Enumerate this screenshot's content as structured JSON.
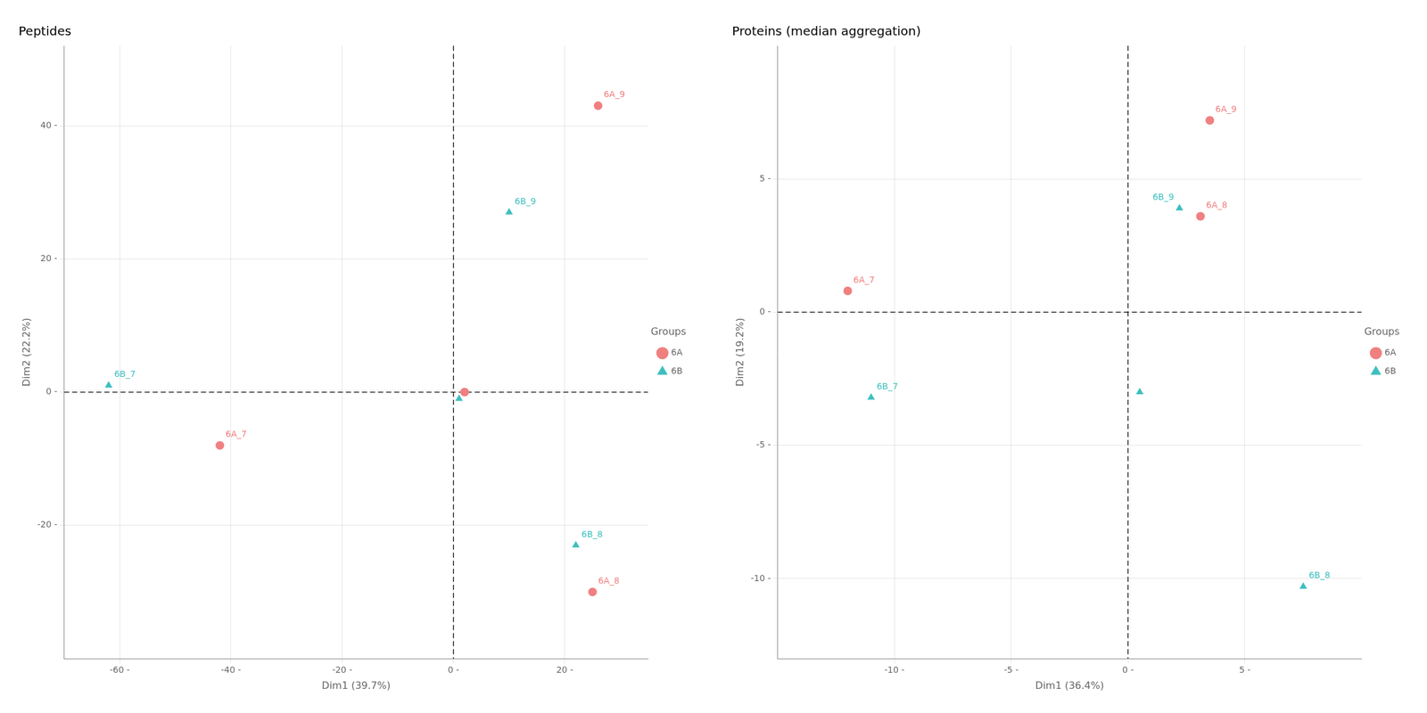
{
  "chart_data": [
    {
      "type": "scatter",
      "title": "Peptides",
      "xlabel": "Dim1 (39.7%)",
      "ylabel": "Dim2 (22.2%)",
      "xlim": [
        -70,
        35
      ],
      "ylim": [
        -40,
        52
      ],
      "xticks": [
        {
          "value": -60,
          "label": "-60 -"
        },
        {
          "value": -40,
          "label": "-40 -"
        },
        {
          "value": -20,
          "label": "-20 -"
        },
        {
          "value": 0,
          "label": "0 -"
        },
        {
          "value": 20,
          "label": "20 -"
        }
      ],
      "yticks": [
        {
          "value": -20,
          "label": "-20 -"
        },
        {
          "value": 0,
          "label": "0 -"
        },
        {
          "value": 20,
          "label": "20 -"
        },
        {
          "value": 40,
          "label": "40 -"
        }
      ],
      "grid": true,
      "legend": "right",
      "legend_title": "Groups",
      "series": [
        {
          "name": "6A",
          "color": "#F08080",
          "marker": "circle",
          "x": [
            26,
            -42,
            25,
            2
          ],
          "values": [
            43,
            -8,
            -30,
            0
          ],
          "labels": [
            "6A_9",
            "6A_7",
            "6A_8",
            null
          ]
        },
        {
          "name": "6B",
          "color": "#3DBFBF",
          "marker": "triangle",
          "x": [
            10,
            -62,
            22,
            1
          ],
          "values": [
            27,
            1,
            -23,
            -1
          ],
          "labels": [
            "6B_9",
            "6B_7",
            "6B_8",
            null
          ]
        }
      ]
    },
    {
      "type": "scatter",
      "title": "Proteins (median aggregation)",
      "xlabel": "Dim1 (36.4%)",
      "ylabel": "Dim2 (19.2%)",
      "xlim": [
        -15,
        10
      ],
      "ylim": [
        -13,
        10
      ],
      "xticks": [
        {
          "value": -10,
          "label": "-10 -"
        },
        {
          "value": -5,
          "label": "-5 -"
        },
        {
          "value": 0,
          "label": "0 -"
        },
        {
          "value": 5,
          "label": "5 -"
        }
      ],
      "yticks": [
        {
          "value": -10,
          "label": "-10 -"
        },
        {
          "value": -5,
          "label": "-5 -"
        },
        {
          "value": 0,
          "label": "0 -"
        },
        {
          "value": 5,
          "label": "5 -"
        }
      ],
      "grid": true,
      "legend": "right",
      "legend_title": "Groups",
      "series": [
        {
          "name": "6A",
          "color": "#F08080",
          "marker": "circle",
          "x": [
            3.5,
            3.1,
            -12
          ],
          "values": [
            7.2,
            3.6,
            0.8
          ],
          "labels": [
            "6A_9",
            "6A_8",
            "6A_7"
          ]
        },
        {
          "name": "6B",
          "color": "#3DBFBF",
          "marker": "triangle",
          "x": [
            2.2,
            -11,
            7.5,
            0.5
          ],
          "values": [
            3.9,
            -3.2,
            -10.3,
            -3.0
          ],
          "labels": [
            "6B_9",
            "6B_7",
            "6B_8",
            null
          ]
        }
      ]
    }
  ]
}
